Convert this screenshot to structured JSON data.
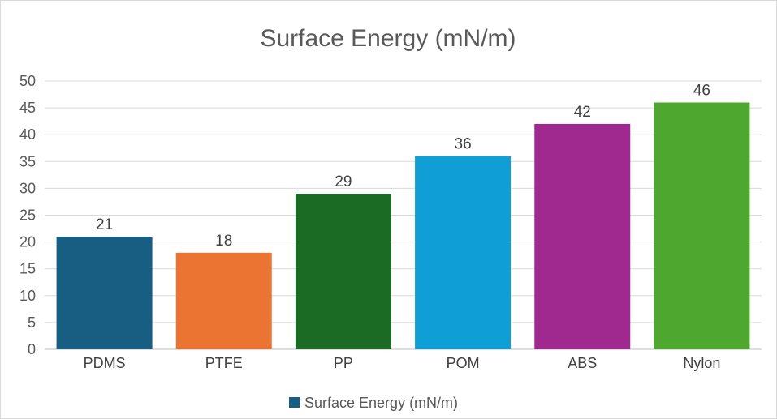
{
  "chart_data": {
    "type": "bar",
    "title": "Surface Energy (mN/m)",
    "categories": [
      "PDMS",
      "PTFE",
      "PP",
      "POM",
      "ABS",
      "Nylon"
    ],
    "series": [
      {
        "name": "Surface Energy (mN/m)",
        "values": [
          21,
          18,
          29,
          36,
          42,
          46
        ]
      }
    ],
    "colors": [
      "#175E82",
      "#EB7433",
      "#1B6B24",
      "#0F9ED5",
      "#A0298F",
      "#4EA72E"
    ],
    "legend_color": "#175E82",
    "ylim": [
      0,
      50
    ],
    "yticks": [
      0,
      5,
      10,
      15,
      20,
      25,
      30,
      35,
      40,
      45,
      50
    ],
    "grid": true,
    "data_labels": true,
    "legend_position": "bottom",
    "xlabel": "",
    "ylabel": ""
  }
}
